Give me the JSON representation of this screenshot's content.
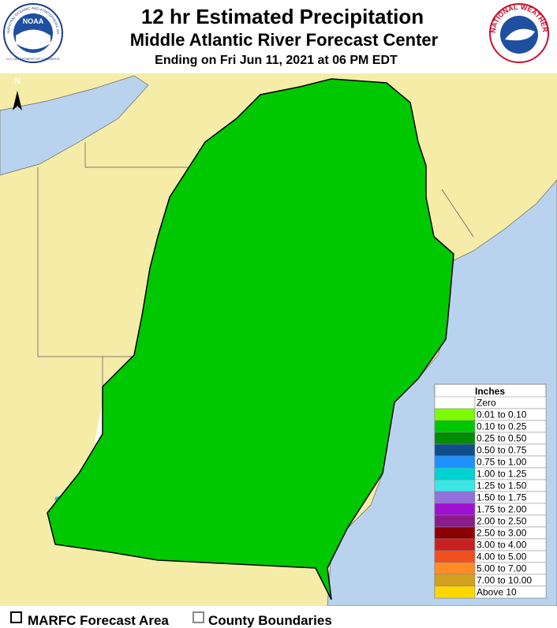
{
  "header": {
    "title": "12 hr Estimated Precipitation",
    "subtitle": "Middle Atlantic River Forecast Center",
    "valid": "Ending on Fri Jun 11, 2021 at 06 PM EDT"
  },
  "logos": {
    "noaa": "NOAA",
    "noaa_ring": "NATIONAL OCEANIC AND ATMOSPHERIC ADMINISTRATION",
    "noaa_dept": "U.S. DEPARTMENT OF COMMERCE",
    "nws_ring": "NATIONAL WEATHER SERVICE"
  },
  "map": {
    "north_label": "N"
  },
  "legend": {
    "title": "Inches",
    "items": [
      {
        "label": "Zero",
        "color": "#ffffff"
      },
      {
        "label": "0.01 to 0.10",
        "color": "#7cfc00"
      },
      {
        "label": "0.10 to 0.25",
        "color": "#00c800"
      },
      {
        "label": "0.25 to 0.50",
        "color": "#008c00"
      },
      {
        "label": "0.50 to 0.75",
        "color": "#104e8b"
      },
      {
        "label": "0.75 to 1.00",
        "color": "#1e90ff"
      },
      {
        "label": "1.00 to 1.25",
        "color": "#00d2d2"
      },
      {
        "label": "1.25 to 1.50",
        "color": "#3ce6e6"
      },
      {
        "label": "1.50 to 1.75",
        "color": "#9370db"
      },
      {
        "label": "1.75 to 2.00",
        "color": "#a010d0"
      },
      {
        "label": "2.00 to 2.50",
        "color": "#8b1a8b"
      },
      {
        "label": "2.50 to 3.00",
        "color": "#8b0000"
      },
      {
        "label": "3.00 to 4.00",
        "color": "#c82020"
      },
      {
        "label": "4.00 to 5.00",
        "color": "#f0501e"
      },
      {
        "label": "5.00 to 7.00",
        "color": "#ff8c28"
      },
      {
        "label": "7.00 to 10.00",
        "color": "#d2a01e"
      },
      {
        "label": "Above 10",
        "color": "#ffd700"
      }
    ]
  },
  "footer": {
    "forecast_area": "MARFC Forecast Area",
    "county_boundaries": "County Boundaries"
  }
}
